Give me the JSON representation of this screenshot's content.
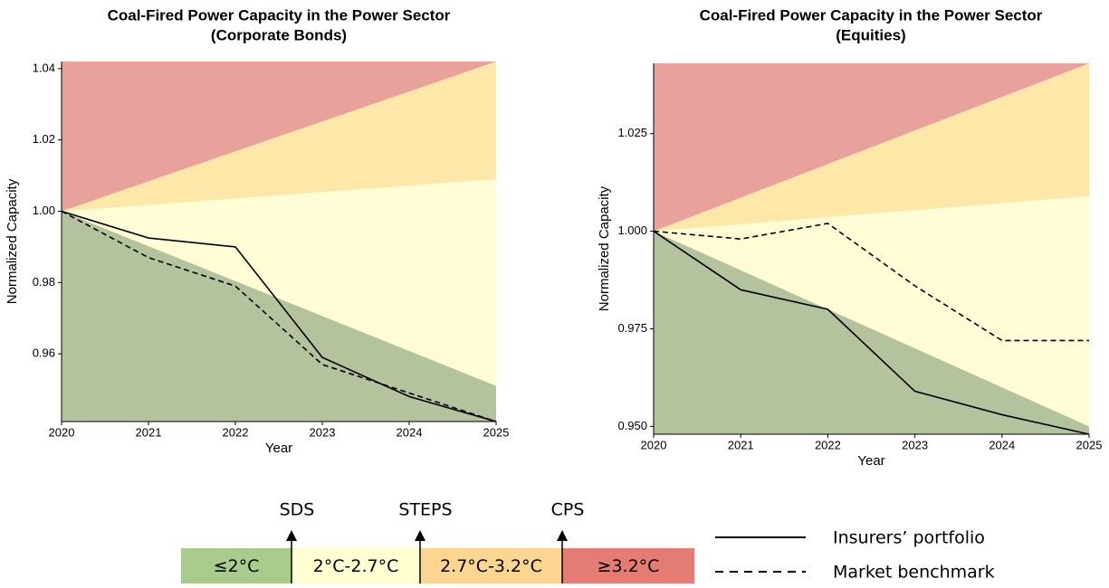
{
  "chart_data": [
    {
      "type": "line",
      "title": "Coal-Fired Power Capacity in the Power Sector",
      "subtitle": "(Corporate Bonds)",
      "x_label": "Year",
      "y_label": "Normalized Capacity",
      "x": [
        2020,
        2021,
        2022,
        2023,
        2024,
        2025
      ],
      "xlim": [
        2020,
        2025
      ],
      "xticks": [
        2020,
        2021,
        2022,
        2023,
        2024,
        2025
      ],
      "ylim": [
        0.941,
        1.042
      ],
      "yticks": [
        0.96,
        0.98,
        {
          "value": 1.0,
          "label": "1.00"
        },
        1.02,
        1.04
      ],
      "above_color": "#e8a19b",
      "scenarios": [
        {
          "name": "CPS",
          "color": "#fde8aa",
          "values": [
            1.0,
            1.0084,
            1.0168,
            1.0252,
            1.0336,
            1.042
          ]
        },
        {
          "name": "STEPS",
          "color": "#fffcd6",
          "values": [
            1.0,
            1.0018,
            1.0036,
            1.0054,
            1.0072,
            1.009
          ]
        },
        {
          "name": "SDS",
          "color": "#b5c29e",
          "values": [
            1.0,
            0.9902,
            0.9804,
            0.9706,
            0.9608,
            0.951
          ]
        }
      ],
      "series": [
        {
          "name": "Insurers’ portfolio",
          "color": "#000000",
          "dash": "solid",
          "values": [
            1.0,
            0.9925,
            0.99,
            0.959,
            0.948,
            0.941
          ]
        },
        {
          "name": "Market benchmark",
          "color": "#000000",
          "dash": "dashed",
          "values": [
            1.0,
            0.987,
            0.979,
            0.957,
            0.949,
            0.941
          ]
        }
      ]
    },
    {
      "type": "line",
      "title": "Coal-Fired Power Capacity in the Power Sector",
      "subtitle": "(Equities)",
      "x_label": "Year",
      "y_label": "Normalized Capacity",
      "x": [
        2020,
        2021,
        2022,
        2023,
        2024,
        2025
      ],
      "xlim": [
        2020,
        2025
      ],
      "xticks": [
        2020,
        2021,
        2022,
        2023,
        2024,
        2025
      ],
      "ylim": [
        0.948,
        1.043
      ],
      "yticks": [
        {
          "value": 0.95,
          "label": "0.950"
        },
        0.975,
        {
          "value": 1.0,
          "label": "1.000"
        },
        1.025
      ],
      "above_color": "#e8a19b",
      "scenarios": [
        {
          "name": "CPS",
          "color": "#fde8aa",
          "values": [
            1.0,
            1.0086,
            1.0172,
            1.0258,
            1.0344,
            1.043
          ]
        },
        {
          "name": "STEPS",
          "color": "#fffcd6",
          "values": [
            1.0,
            1.0018,
            1.0036,
            1.0054,
            1.0072,
            1.009
          ]
        },
        {
          "name": "SDS",
          "color": "#b5c29e",
          "values": [
            1.0,
            0.99,
            0.98,
            0.97,
            0.96,
            0.95
          ]
        }
      ],
      "series": [
        {
          "name": "Insurers’ portfolio",
          "color": "#000000",
          "dash": "solid",
          "values": [
            1.0,
            0.985,
            0.98,
            0.959,
            0.953,
            0.948
          ]
        },
        {
          "name": "Market benchmark",
          "color": "#000000",
          "dash": "dashed",
          "values": [
            1.0,
            0.998,
            1.002,
            0.986,
            0.972,
            0.972
          ]
        }
      ]
    }
  ],
  "legend": {
    "bands": [
      {
        "label": "≤2°C",
        "color": "#a9cc8c"
      },
      {
        "label": "2°C-2.7°C",
        "color": "#ffffd2"
      },
      {
        "label": "2.7°C-3.2°C",
        "color": "#fcd590"
      },
      {
        "label": "≥3.2°C",
        "color": "#e57c73"
      }
    ]
  }
}
